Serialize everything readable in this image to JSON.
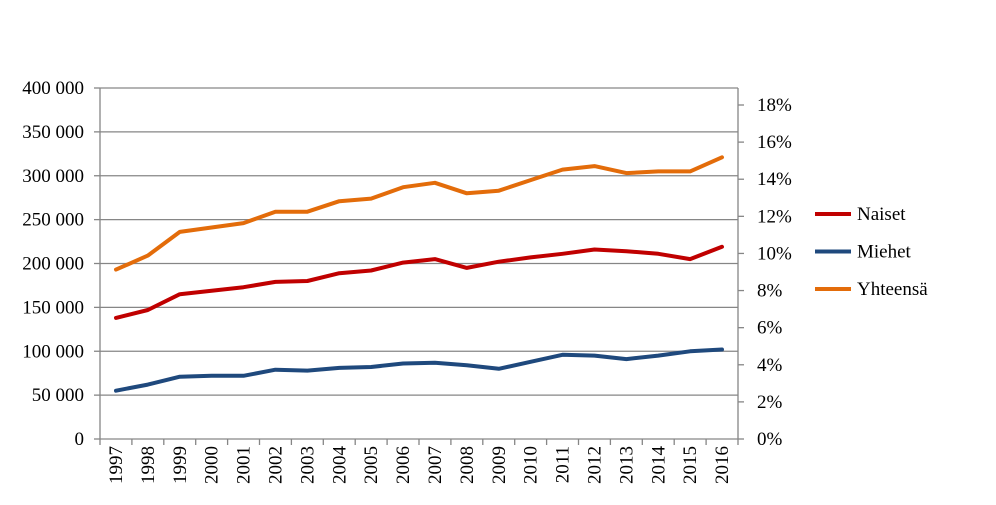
{
  "chart_data": {
    "type": "line",
    "title": "",
    "xlabel": "",
    "ylabel": "",
    "categories": [
      "1997",
      "1998",
      "1999",
      "2000",
      "2001",
      "2002",
      "2003",
      "2004",
      "2005",
      "2006",
      "2007",
      "2008",
      "2009",
      "2010",
      "2011",
      "2012",
      "2013",
      "2014",
      "2015",
      "2016"
    ],
    "ylim": [
      0,
      400000
    ],
    "yticks": [
      "0",
      "50 000",
      "100 000",
      "150 000",
      "200 000",
      "250 000",
      "300 000",
      "350 000",
      "400 000"
    ],
    "y2lim": [
      0,
      18
    ],
    "y2ticks": [
      "0%",
      "2%",
      "4%",
      "6%",
      "8%",
      "10%",
      "12%",
      "14%",
      "16%",
      "18%"
    ],
    "grid": true,
    "legend_position": "right",
    "series": [
      {
        "name": "Naiset",
        "color": "#C00000",
        "values": [
          138000,
          147000,
          165000,
          169000,
          173000,
          179000,
          180000,
          189000,
          192000,
          201000,
          205000,
          195000,
          202000,
          207000,
          211000,
          216000,
          214000,
          211000,
          205000,
          219000
        ]
      },
      {
        "name": "Miehet",
        "color": "#1F497D",
        "values": [
          55000,
          62000,
          71000,
          72000,
          72000,
          79000,
          78000,
          81000,
          82000,
          86000,
          87000,
          84000,
          80000,
          88000,
          96000,
          95000,
          91000,
          95000,
          100000,
          102000
        ]
      },
      {
        "name": "Yhteensä",
        "color": "#E36C0A",
        "values": [
          193000,
          209000,
          236000,
          241000,
          246000,
          259000,
          259000,
          271000,
          274000,
          287000,
          292000,
          280000,
          283000,
          295000,
          307000,
          311000,
          303000,
          305000,
          305000,
          321000
        ]
      }
    ]
  }
}
